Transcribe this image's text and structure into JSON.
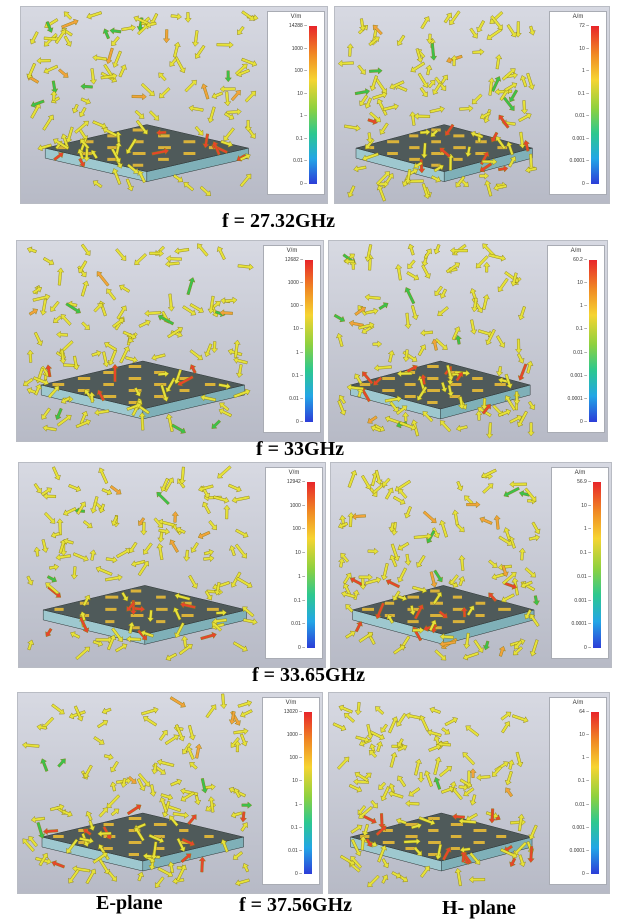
{
  "rows": [
    {
      "frequency_label": "f = 27.32GHz",
      "e_plane": {
        "unit": "V/m",
        "ticks": [
          "14288",
          "1000",
          "100",
          "10",
          "1",
          "0.1",
          "0.01",
          "0"
        ]
      },
      "h_plane": {
        "unit": "A/m",
        "ticks": [
          "72",
          "10",
          "1",
          "0.1",
          "0.01",
          "0.001",
          "0.0001",
          "0"
        ]
      }
    },
    {
      "frequency_label": "f = 33GHz",
      "e_plane": {
        "unit": "V/m",
        "ticks": [
          "12682",
          "1000",
          "100",
          "10",
          "1",
          "0.1",
          "0.01",
          "0"
        ]
      },
      "h_plane": {
        "unit": "A/m",
        "ticks": [
          "60.2",
          "10",
          "1",
          "0.1",
          "0.01",
          "0.001",
          "0.0001",
          "0"
        ]
      }
    },
    {
      "frequency_label": "f = 33.65GHz",
      "e_plane": {
        "unit": "V/m",
        "ticks": [
          "12942",
          "1000",
          "100",
          "10",
          "1",
          "0.1",
          "0.01",
          "0"
        ]
      },
      "h_plane": {
        "unit": "A/m",
        "ticks": [
          "56.9",
          "10",
          "1",
          "0.1",
          "0.01",
          "0.001",
          "0.0001",
          "0"
        ]
      }
    },
    {
      "frequency_label": "f = 37.56GHz",
      "e_plane": {
        "unit": "V/m",
        "ticks": [
          "13020",
          "1000",
          "100",
          "10",
          "1",
          "0.1",
          "0.01",
          "0"
        ]
      },
      "h_plane": {
        "unit": "A/m",
        "ticks": [
          "64",
          "10",
          "1",
          "0.1",
          "0.01",
          "0.001",
          "0.0001",
          "0"
        ]
      }
    }
  ],
  "bottom_labels": {
    "e_plane": "E-plane",
    "h_plane": "H- plane"
  },
  "colors": {
    "panel_background": "#c9ccd6",
    "arrow_fill": "#e6e23a",
    "arrow_stroke": "#8a7d12",
    "hot_arrow": "#e8452a",
    "cool_arrow": "#3bc24a",
    "substrate_top": "#4f5a5a",
    "substrate_side": "#9ec8cf",
    "copper": "#d9b23a"
  }
}
